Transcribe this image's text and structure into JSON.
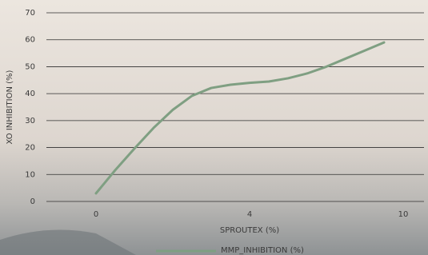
{
  "chart_data": {
    "type": "line",
    "x_title": "SPROUTEX (%)",
    "y_title": "XO INHIBITION (%)",
    "categories": [
      "0",
      null,
      null,
      null,
      null,
      null,
      null,
      null,
      "4",
      null,
      null,
      null,
      null,
      null,
      null,
      null,
      "10"
    ],
    "series": [
      {
        "name": "MMP_INHIBITION (%)",
        "color": "#7f9f82",
        "values": [
          3,
          11.6,
          19.6,
          27.3,
          34,
          39.2,
          42.1,
          43.3,
          44,
          44.5,
          45.7,
          47.5,
          50,
          53,
          56,
          59,
          null
        ]
      }
    ],
    "ylim": [
      0,
      70
    ],
    "yticks": [
      0,
      10,
      20,
      30,
      40,
      50,
      60,
      70
    ],
    "grid": true,
    "legend": "bottom"
  }
}
